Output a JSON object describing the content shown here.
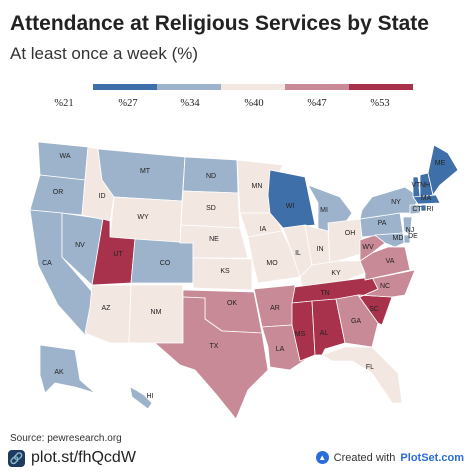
{
  "header": {
    "title": "Attendance at Religious Services by State",
    "subtitle": "At least once a week (%)"
  },
  "legend": {
    "colors": [
      "#3f6fa8",
      "#9db3cb",
      "#f3e7e2",
      "#c98a97",
      "#a8324b"
    ],
    "labels": [
      "%21",
      "%27",
      "%34",
      "%40",
      "%47",
      "%53"
    ]
  },
  "states": [
    {
      "code": "WA",
      "color": "#9db3cb"
    },
    {
      "code": "OR",
      "color": "#9db3cb"
    },
    {
      "code": "CA",
      "color": "#9db3cb"
    },
    {
      "code": "NV",
      "color": "#9db3cb"
    },
    {
      "code": "ID",
      "color": "#f3e7e2"
    },
    {
      "code": "MT",
      "color": "#9db3cb"
    },
    {
      "code": "WY",
      "color": "#f3e7e2"
    },
    {
      "code": "UT",
      "color": "#a8324b"
    },
    {
      "code": "CO",
      "color": "#9db3cb"
    },
    {
      "code": "AZ",
      "color": "#f3e7e2"
    },
    {
      "code": "NM",
      "color": "#f3e7e2"
    },
    {
      "code": "ND",
      "color": "#9db3cb"
    },
    {
      "code": "SD",
      "color": "#f3e7e2"
    },
    {
      "code": "NE",
      "color": "#f3e7e2"
    },
    {
      "code": "KS",
      "color": "#f3e7e2"
    },
    {
      "code": "OK",
      "color": "#c98a97"
    },
    {
      "code": "TX",
      "color": "#c98a97"
    },
    {
      "code": "MN",
      "color": "#f3e7e2"
    },
    {
      "code": "IA",
      "color": "#f3e7e2"
    },
    {
      "code": "MO",
      "color": "#f3e7e2"
    },
    {
      "code": "AR",
      "color": "#c98a97"
    },
    {
      "code": "LA",
      "color": "#c98a97"
    },
    {
      "code": "WI",
      "color": "#3f6fa8"
    },
    {
      "code": "IL",
      "color": "#f3e7e2"
    },
    {
      "code": "MI",
      "color": "#9db3cb"
    },
    {
      "code": "IN",
      "color": "#f3e7e2"
    },
    {
      "code": "OH",
      "color": "#f3e7e2"
    },
    {
      "code": "KY",
      "color": "#f3e7e2"
    },
    {
      "code": "TN",
      "color": "#a8324b"
    },
    {
      "code": "MS",
      "color": "#a8324b"
    },
    {
      "code": "AL",
      "color": "#a8324b"
    },
    {
      "code": "GA",
      "color": "#c98a97"
    },
    {
      "code": "FL",
      "color": "#f3e7e2"
    },
    {
      "code": "SC",
      "color": "#a8324b"
    },
    {
      "code": "NC",
      "color": "#c98a97"
    },
    {
      "code": "VA",
      "color": "#c98a97"
    },
    {
      "code": "WV",
      "color": "#c98a97"
    },
    {
      "code": "PA",
      "color": "#9db3cb"
    },
    {
      "code": "NY",
      "color": "#9db3cb"
    },
    {
      "code": "VT",
      "color": "#3f6fa8"
    },
    {
      "code": "NH",
      "color": "#3f6fa8"
    },
    {
      "code": "ME",
      "color": "#3f6fa8"
    },
    {
      "code": "MA",
      "color": "#3f6fa8"
    },
    {
      "code": "CT",
      "color": "#9db3cb"
    },
    {
      "code": "RI",
      "color": "#3f6fa8"
    },
    {
      "code": "NJ",
      "color": "#9db3cb"
    },
    {
      "code": "DE",
      "color": "#9db3cb"
    },
    {
      "code": "MD",
      "color": "#9db3cb"
    },
    {
      "code": "AK",
      "color": "#9db3cb"
    },
    {
      "code": "HI",
      "color": "#9db3cb"
    }
  ],
  "footer": {
    "source": "Source: pewresearch.org",
    "short_link": "plot.st/fhQcdW",
    "created_with": "Created with",
    "brand": "PlotSet.com"
  }
}
